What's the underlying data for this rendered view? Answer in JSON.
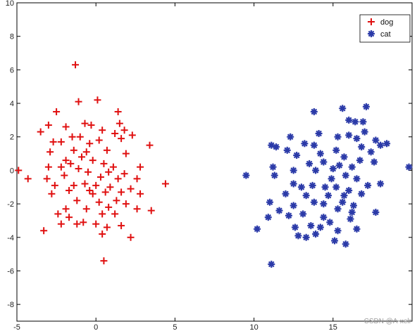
{
  "chart_data": {
    "type": "scatter",
    "xlim": [
      -5,
      20
    ],
    "ylim": [
      -9,
      10
    ],
    "x_ticks": [
      -5,
      0,
      5,
      10,
      15
    ],
    "y_ticks": [
      -8,
      -6,
      -4,
      -2,
      0,
      2,
      4,
      6,
      8,
      10
    ],
    "grid": false,
    "legend_position": "top-right",
    "series": [
      {
        "name": "dog",
        "marker": "plus",
        "color": "#e01010",
        "points": [
          [
            -1.3,
            6.3
          ],
          [
            0.1,
            4.2
          ],
          [
            -1.1,
            4.1
          ],
          [
            1.4,
            3.5
          ],
          [
            -2.5,
            3.5
          ],
          [
            -3.0,
            2.7
          ],
          [
            -1.9,
            2.6
          ],
          [
            1.5,
            2.8
          ],
          [
            1.8,
            2.4
          ],
          [
            -3.5,
            2.3
          ],
          [
            -0.7,
            2.8
          ],
          [
            -0.3,
            2.7
          ],
          [
            0.4,
            2.4
          ],
          [
            1.2,
            2.2
          ],
          [
            2.3,
            2.1
          ],
          [
            -1.5,
            2.0
          ],
          [
            -1.0,
            2.0
          ],
          [
            -2.2,
            1.7
          ],
          [
            -2.7,
            1.7
          ],
          [
            0.2,
            1.8
          ],
          [
            1.6,
            1.9
          ],
          [
            3.4,
            1.5
          ],
          [
            -0.4,
            1.6
          ],
          [
            -2.9,
            1.1
          ],
          [
            -1.4,
            1.2
          ],
          [
            -0.6,
            1.1
          ],
          [
            0.7,
            1.2
          ],
          [
            1.9,
            1.0
          ],
          [
            -0.9,
            0.8
          ],
          [
            -1.9,
            0.6
          ],
          [
            -0.2,
            0.6
          ],
          [
            0.5,
            0.4
          ],
          [
            1.1,
            0.2
          ],
          [
            -1.6,
            0.4
          ],
          [
            -2.2,
            0.2
          ],
          [
            -3.0,
            0.2
          ],
          [
            2.8,
            0.2
          ],
          [
            -1.1,
            0.1
          ],
          [
            -4.9,
            0.0
          ],
          [
            -0.5,
            -0.1
          ],
          [
            0.8,
            -0.1
          ],
          [
            1.8,
            -0.2
          ],
          [
            -4.3,
            -0.5
          ],
          [
            -3.1,
            -0.5
          ],
          [
            -2.0,
            -0.3
          ],
          [
            0.3,
            -0.4
          ],
          [
            1.4,
            -0.5
          ],
          [
            2.6,
            -0.5
          ],
          [
            4.4,
            -0.8
          ],
          [
            -2.6,
            -0.9
          ],
          [
            -1.4,
            -0.9
          ],
          [
            -0.7,
            -0.8
          ],
          [
            0.0,
            -0.9
          ],
          [
            0.9,
            -1.0
          ],
          [
            2.2,
            -1.1
          ],
          [
            -1.7,
            -1.2
          ],
          [
            -0.4,
            -1.2
          ],
          [
            0.6,
            -1.3
          ],
          [
            1.6,
            -1.3
          ],
          [
            -2.8,
            -1.4
          ],
          [
            -0.2,
            -1.4
          ],
          [
            2.8,
            -1.4
          ],
          [
            -1.2,
            -1.8
          ],
          [
            0.2,
            -1.9
          ],
          [
            1.3,
            -1.8
          ],
          [
            -1.9,
            -2.3
          ],
          [
            0.8,
            -2.2
          ],
          [
            1.9,
            -2.0
          ],
          [
            2.6,
            -2.3
          ],
          [
            3.5,
            -2.4
          ],
          [
            -2.4,
            -2.6
          ],
          [
            -0.6,
            -2.3
          ],
          [
            0.4,
            -2.6
          ],
          [
            1.2,
            -2.6
          ],
          [
            -1.7,
            -2.8
          ],
          [
            -1.2,
            -3.2
          ],
          [
            -0.8,
            -3.1
          ],
          [
            -2.2,
            -3.2
          ],
          [
            0.0,
            -3.2
          ],
          [
            0.7,
            -3.4
          ],
          [
            1.6,
            -3.3
          ],
          [
            -3.3,
            -3.6
          ],
          [
            0.4,
            -3.8
          ],
          [
            2.2,
            -4.0
          ],
          [
            0.5,
            -5.4
          ]
        ]
      },
      {
        "name": "cat",
        "marker": "asterisk",
        "color": "#2b3aa8",
        "points": [
          [
            13.8,
            3.5
          ],
          [
            15.6,
            3.7
          ],
          [
            17.1,
            3.8
          ],
          [
            16.0,
            3.0
          ],
          [
            16.4,
            2.9
          ],
          [
            16.9,
            2.9
          ],
          [
            12.3,
            2.0
          ],
          [
            14.1,
            2.2
          ],
          [
            15.3,
            2.0
          ],
          [
            16.0,
            2.1
          ],
          [
            17.0,
            2.3
          ],
          [
            16.5,
            1.9
          ],
          [
            17.7,
            1.8
          ],
          [
            18.4,
            1.6
          ],
          [
            11.1,
            1.5
          ],
          [
            11.4,
            1.4
          ],
          [
            13.2,
            1.6
          ],
          [
            13.8,
            1.5
          ],
          [
            15.2,
            1.2
          ],
          [
            16.8,
            1.4
          ],
          [
            17.4,
            1.1
          ],
          [
            18.0,
            1.5
          ],
          [
            12.1,
            1.2
          ],
          [
            12.7,
            0.9
          ],
          [
            14.2,
            1.0
          ],
          [
            15.7,
            0.8
          ],
          [
            16.7,
            0.6
          ],
          [
            13.5,
            0.4
          ],
          [
            14.4,
            0.5
          ],
          [
            15.4,
            0.3
          ],
          [
            16.2,
            0.2
          ],
          [
            17.6,
            0.5
          ],
          [
            19.8,
            0.2
          ],
          [
            11.2,
            0.2
          ],
          [
            12.5,
            0.0
          ],
          [
            13.9,
            0.0
          ],
          [
            15.0,
            0.1
          ],
          [
            9.5,
            -0.3
          ],
          [
            11.3,
            -0.3
          ],
          [
            14.9,
            -0.5
          ],
          [
            15.8,
            -0.3
          ],
          [
            16.5,
            -0.5
          ],
          [
            12.5,
            -0.8
          ],
          [
            13.0,
            -1.0
          ],
          [
            13.7,
            -0.9
          ],
          [
            14.5,
            -1.0
          ],
          [
            15.2,
            -1.0
          ],
          [
            16.0,
            -1.2
          ],
          [
            17.2,
            -0.9
          ],
          [
            18.0,
            -0.8
          ],
          [
            12.0,
            -1.4
          ],
          [
            13.3,
            -1.5
          ],
          [
            14.7,
            -1.5
          ],
          [
            15.7,
            -1.5
          ],
          [
            16.8,
            -1.4
          ],
          [
            11.0,
            -1.9
          ],
          [
            13.8,
            -1.9
          ],
          [
            14.4,
            -2.0
          ],
          [
            15.6,
            -1.9
          ],
          [
            16.3,
            -2.1
          ],
          [
            12.5,
            -2.1
          ],
          [
            11.6,
            -2.4
          ],
          [
            15.3,
            -2.3
          ],
          [
            16.2,
            -2.5
          ],
          [
            17.7,
            -2.5
          ],
          [
            10.9,
            -2.8
          ],
          [
            12.2,
            -2.7
          ],
          [
            13.1,
            -2.6
          ],
          [
            14.4,
            -2.8
          ],
          [
            14.8,
            -3.1
          ],
          [
            16.1,
            -2.9
          ],
          [
            10.2,
            -3.5
          ],
          [
            12.6,
            -3.4
          ],
          [
            13.6,
            -3.3
          ],
          [
            14.2,
            -3.4
          ],
          [
            15.3,
            -3.6
          ],
          [
            16.5,
            -3.5
          ],
          [
            12.8,
            -3.9
          ],
          [
            13.3,
            -4.0
          ],
          [
            13.9,
            -3.8
          ],
          [
            15.1,
            -4.2
          ],
          [
            15.8,
            -4.4
          ],
          [
            11.1,
            -5.6
          ]
        ]
      }
    ]
  },
  "watermark": "CSDN @A-xelr"
}
